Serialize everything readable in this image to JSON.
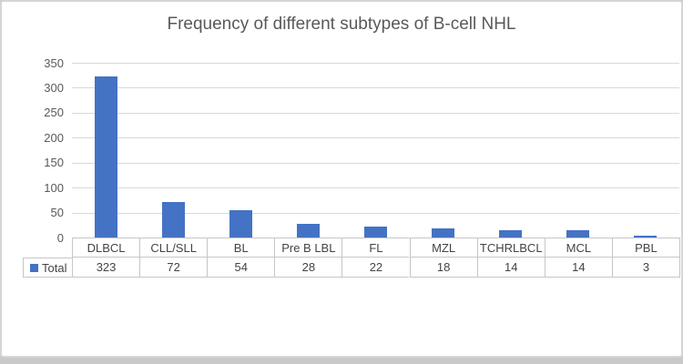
{
  "chart_data": {
    "type": "bar",
    "title": "Frequency of different subtypes of B-cell NHL",
    "categories": [
      "DLBCL",
      "CLL/SLL",
      "BL",
      "Pre B LBL",
      "FL",
      "MZL",
      "TCHRLBCL",
      "MCL",
      "PBL"
    ],
    "series": [
      {
        "name": "Total",
        "values": [
          323,
          72,
          54,
          28,
          22,
          18,
          14,
          14,
          3
        ]
      }
    ],
    "ylim": [
      0,
      350
    ],
    "ytick_step": 50,
    "ytick_labels": [
      "350",
      "300",
      "250",
      "200",
      "150",
      "100",
      "50",
      "0"
    ],
    "grid": true,
    "legend_position": "data-table-row-header",
    "data_table_shown": true,
    "colors": {
      "bar": "#4472C4",
      "grid": "#D9D9D9",
      "axis_text": "#595959",
      "title_text": "#595959",
      "table_border": "#C6C6C6",
      "table_text": "#444444",
      "chart_border": "#D6D6D6",
      "chart_background": "#FFFFFF",
      "page_background": "#C9C9C9"
    }
  }
}
